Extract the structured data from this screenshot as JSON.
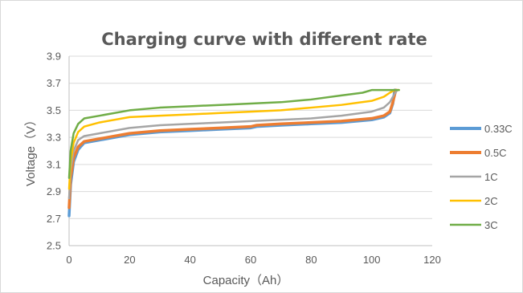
{
  "chart_data": {
    "type": "line",
    "title": "Charging curve with different rate",
    "xlabel": "Capacity（Ah）",
    "ylabel": "Voltage（V）",
    "xlim": [
      0,
      120
    ],
    "ylim": [
      2.5,
      3.9
    ],
    "xticks": [
      "0",
      "20",
      "40",
      "60",
      "80",
      "100",
      "120"
    ],
    "yticks": [
      "2.5",
      "2.7",
      "2.9",
      "3.1",
      "3.3",
      "3.5",
      "3.7",
      "3.9"
    ],
    "grid": "horizontal",
    "legend_position": "right",
    "series": [
      {
        "name": "0.33C",
        "color": "#5B9BD5",
        "points": [
          [
            0,
            2.72
          ],
          [
            0.5,
            2.95
          ],
          [
            1.5,
            3.12
          ],
          [
            3,
            3.21
          ],
          [
            5,
            3.26
          ],
          [
            10,
            3.28
          ],
          [
            20,
            3.32
          ],
          [
            30,
            3.34
          ],
          [
            40,
            3.35
          ],
          [
            50,
            3.36
          ],
          [
            60,
            3.37
          ],
          [
            62,
            3.38
          ],
          [
            70,
            3.39
          ],
          [
            80,
            3.4
          ],
          [
            90,
            3.41
          ],
          [
            100,
            3.43
          ],
          [
            104,
            3.45
          ],
          [
            106,
            3.48
          ],
          [
            107,
            3.55
          ],
          [
            107.6,
            3.65
          ]
        ]
      },
      {
        "name": "0.5C",
        "color": "#ED7D31",
        "points": [
          [
            0,
            2.78
          ],
          [
            0.5,
            3.0
          ],
          [
            1.5,
            3.15
          ],
          [
            3,
            3.23
          ],
          [
            5,
            3.27
          ],
          [
            10,
            3.29
          ],
          [
            20,
            3.33
          ],
          [
            30,
            3.35
          ],
          [
            40,
            3.36
          ],
          [
            50,
            3.37
          ],
          [
            60,
            3.38
          ],
          [
            62,
            3.39
          ],
          [
            70,
            3.4
          ],
          [
            80,
            3.41
          ],
          [
            90,
            3.42
          ],
          [
            100,
            3.44
          ],
          [
            104,
            3.46
          ],
          [
            106,
            3.49
          ],
          [
            107,
            3.56
          ],
          [
            108,
            3.65
          ]
        ]
      },
      {
        "name": "1C",
        "color": "#A5A5A5",
        "points": [
          [
            0,
            2.85
          ],
          [
            0.5,
            3.06
          ],
          [
            1.5,
            3.2
          ],
          [
            3,
            3.28
          ],
          [
            5,
            3.31
          ],
          [
            10,
            3.33
          ],
          [
            20,
            3.37
          ],
          [
            30,
            3.39
          ],
          [
            40,
            3.4
          ],
          [
            50,
            3.41
          ],
          [
            60,
            3.42
          ],
          [
            70,
            3.43
          ],
          [
            80,
            3.44
          ],
          [
            90,
            3.46
          ],
          [
            100,
            3.49
          ],
          [
            104,
            3.52
          ],
          [
            106,
            3.56
          ],
          [
            107.5,
            3.62
          ],
          [
            108.5,
            3.65
          ]
        ]
      },
      {
        "name": "2C",
        "color": "#FFC000",
        "points": [
          [
            0,
            2.92
          ],
          [
            0.5,
            3.12
          ],
          [
            1.5,
            3.26
          ],
          [
            3,
            3.34
          ],
          [
            5,
            3.38
          ],
          [
            10,
            3.41
          ],
          [
            20,
            3.45
          ],
          [
            30,
            3.46
          ],
          [
            40,
            3.47
          ],
          [
            50,
            3.48
          ],
          [
            60,
            3.49
          ],
          [
            70,
            3.5
          ],
          [
            80,
            3.52
          ],
          [
            90,
            3.54
          ],
          [
            100,
            3.57
          ],
          [
            104,
            3.6
          ],
          [
            106,
            3.63
          ],
          [
            107.5,
            3.65
          ],
          [
            109,
            3.65
          ]
        ]
      },
      {
        "name": "3C",
        "color": "#70AD47",
        "points": [
          [
            0,
            3.0
          ],
          [
            0.5,
            3.2
          ],
          [
            1.5,
            3.33
          ],
          [
            3,
            3.4
          ],
          [
            5,
            3.44
          ],
          [
            10,
            3.46
          ],
          [
            20,
            3.5
          ],
          [
            30,
            3.52
          ],
          [
            40,
            3.53
          ],
          [
            50,
            3.54
          ],
          [
            60,
            3.55
          ],
          [
            70,
            3.56
          ],
          [
            80,
            3.58
          ],
          [
            90,
            3.61
          ],
          [
            97,
            3.63
          ],
          [
            100,
            3.65
          ],
          [
            104,
            3.65
          ],
          [
            109,
            3.65
          ]
        ]
      }
    ]
  }
}
